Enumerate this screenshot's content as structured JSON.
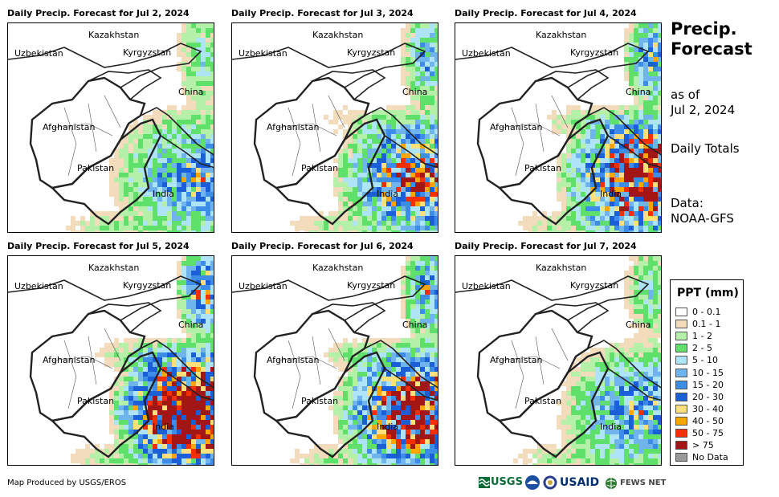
{
  "panels": [
    {
      "title": "Daily Precip. Forecast for Jul 2, 2024",
      "rain": "low"
    },
    {
      "title": "Daily Precip. Forecast for Jul 3, 2024",
      "rain": "med"
    },
    {
      "title": "Daily Precip. Forecast for Jul 4, 2024",
      "rain": "high"
    },
    {
      "title": "Daily Precip. Forecast for Jul 5, 2024",
      "rain": "veryhigh"
    },
    {
      "title": "Daily Precip. Forecast for Jul 6, 2024",
      "rain": "high"
    },
    {
      "title": "Daily Precip. Forecast for Jul 7, 2024",
      "rain": "low"
    }
  ],
  "country_labels": {
    "kazakhstan": "Kazakhstan",
    "uzbekistan": "Uzbekistan",
    "kyrgyzstan": "Kyrgyzstan",
    "china": "China",
    "afghanistan": "Afghanistan",
    "pakistan": "Pakistan",
    "india": "India"
  },
  "sidebar": {
    "title_line1": "Precip.",
    "title_line2": "Forecast",
    "asof_line1": "as of",
    "asof_line2": "Jul 2, 2024",
    "totals": "Daily Totals",
    "data_line1": "Data:",
    "data_line2": "NOAA-GFS"
  },
  "legend": {
    "title": "PPT (mm)",
    "items": [
      {
        "label": "0 - 0.1",
        "color": "#ffffff"
      },
      {
        "label": "0.1 - 1",
        "color": "#f3dcbc"
      },
      {
        "label": "1 - 2",
        "color": "#b4f0a8"
      },
      {
        "label": "2 - 5",
        "color": "#5ee06a"
      },
      {
        "label": "5 - 10",
        "color": "#aee4f7"
      },
      {
        "label": "10 - 15",
        "color": "#70b4ee"
      },
      {
        "label": "15 - 20",
        "color": "#3c8ce8"
      },
      {
        "label": "20 - 30",
        "color": "#1a5ed8"
      },
      {
        "label": "30 - 40",
        "color": "#ffe07a"
      },
      {
        "label": "40 - 50",
        "color": "#ffa500"
      },
      {
        "label": "50 - 75",
        "color": "#f43000"
      },
      {
        "label": "> 75",
        "color": "#a31616"
      },
      {
        "label": "No Data",
        "color": "#999999"
      }
    ]
  },
  "credit": "Map Produced by USGS/EROS",
  "logos": {
    "usgs": "USGS",
    "usaid": "USAID",
    "fewsnet": "FEWS NET"
  }
}
